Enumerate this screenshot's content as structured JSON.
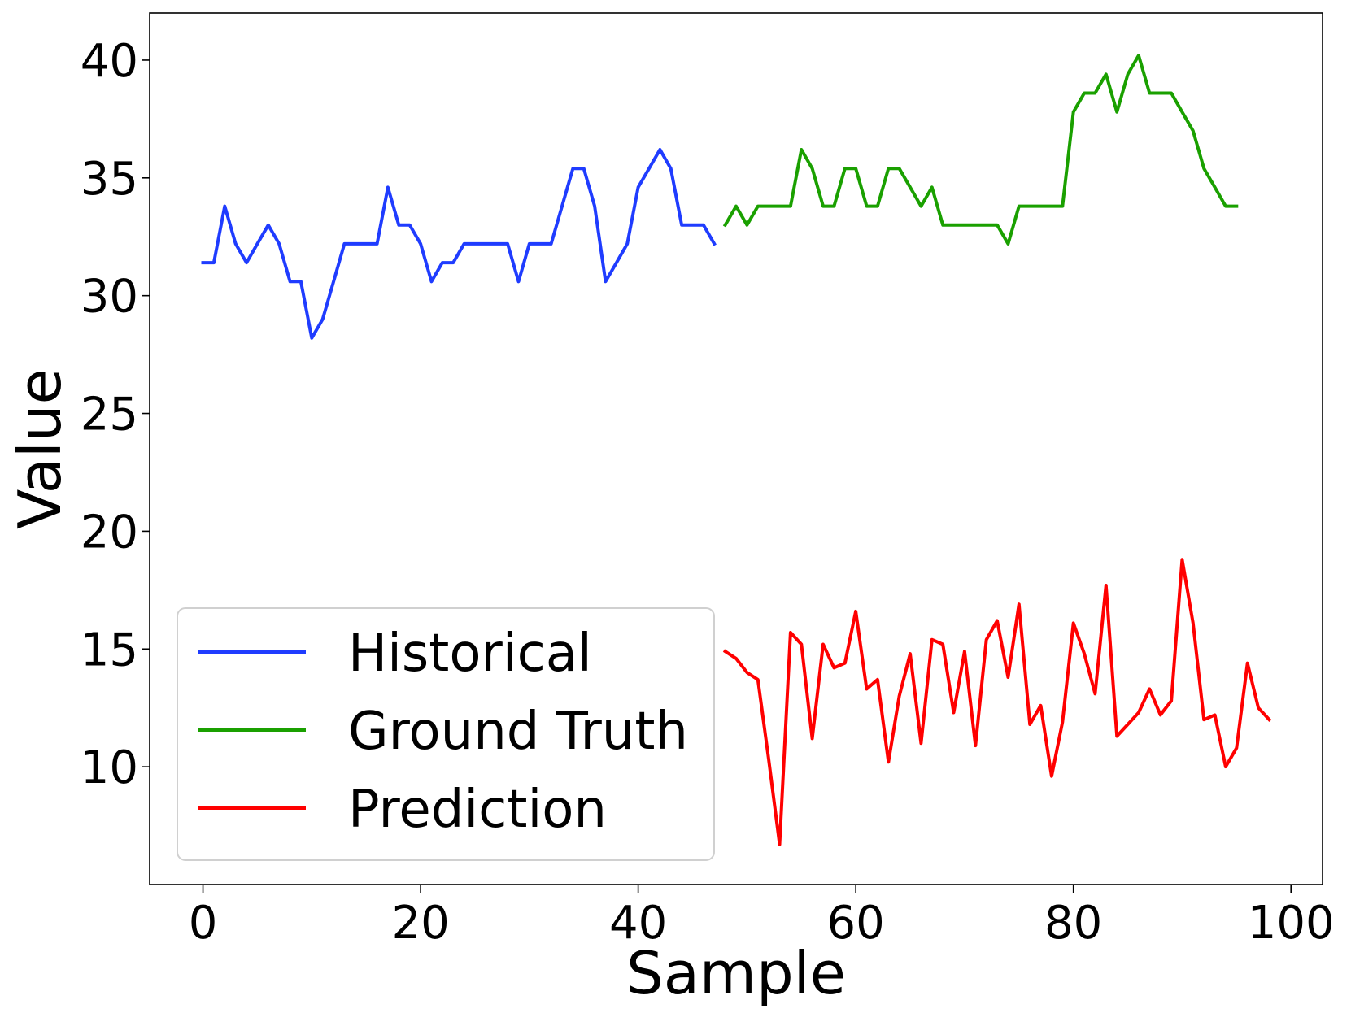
{
  "chart_data": {
    "type": "line",
    "title": "",
    "xlabel": "Sample",
    "ylabel": "Value",
    "xlim": [
      -4.9,
      102.9
    ],
    "ylim": [
      5.0,
      42.0
    ],
    "xticks": [
      0,
      20,
      40,
      60,
      80,
      100
    ],
    "yticks": [
      10,
      15,
      20,
      25,
      30,
      35,
      40
    ],
    "grid": false,
    "legend_position": "lower-left",
    "series": [
      {
        "name": "Historical",
        "color": "#1f3cff",
        "x": [
          0,
          1,
          2,
          3,
          4,
          5,
          6,
          7,
          8,
          9,
          10,
          11,
          12,
          13,
          14,
          15,
          16,
          17,
          18,
          19,
          20,
          21,
          22,
          23,
          24,
          25,
          26,
          27,
          28,
          29,
          30,
          31,
          32,
          33,
          34,
          35,
          36,
          37,
          38,
          39,
          40,
          41,
          42,
          43,
          44,
          45,
          46,
          47
        ],
        "y": [
          31.4,
          31.4,
          33.8,
          32.2,
          31.4,
          32.2,
          33.0,
          32.2,
          30.6,
          30.6,
          28.2,
          29.0,
          30.6,
          32.2,
          32.2,
          32.2,
          32.2,
          34.6,
          33.0,
          33.0,
          32.2,
          30.6,
          31.4,
          31.4,
          32.2,
          32.2,
          32.2,
          32.2,
          32.2,
          30.6,
          32.2,
          32.2,
          32.2,
          33.8,
          35.4,
          35.4,
          33.8,
          30.6,
          31.4,
          32.2,
          34.6,
          35.4,
          36.2,
          35.4,
          33.0,
          33.0,
          33.0,
          32.2
        ]
      },
      {
        "name": "Ground Truth",
        "color": "#1aa000",
        "x": [
          48,
          49,
          50,
          51,
          52,
          53,
          54,
          55,
          56,
          57,
          58,
          59,
          60,
          61,
          62,
          63,
          64,
          65,
          66,
          67,
          68,
          69,
          70,
          71,
          72,
          73,
          74,
          75,
          76,
          77,
          78,
          79,
          80,
          81,
          82,
          83,
          84,
          85,
          86,
          87,
          88,
          89,
          90,
          91,
          92,
          93,
          94,
          95
        ],
        "y": [
          33.0,
          33.8,
          33.0,
          33.8,
          33.8,
          33.8,
          33.8,
          36.2,
          35.4,
          33.8,
          33.8,
          35.4,
          35.4,
          33.8,
          33.8,
          35.4,
          35.4,
          34.6,
          33.8,
          34.6,
          33.0,
          33.0,
          33.0,
          33.0,
          33.0,
          33.0,
          32.2,
          33.8,
          33.8,
          33.8,
          33.8,
          33.8,
          37.8,
          38.6,
          38.6,
          39.4,
          37.8,
          39.4,
          40.2,
          38.6,
          38.6,
          38.6,
          37.8,
          37.0,
          35.4,
          34.6,
          33.8,
          33.8
        ]
      },
      {
        "name": "Prediction",
        "color": "#ff0000",
        "x": [
          48,
          49,
          50,
          51,
          52,
          53,
          54,
          55,
          56,
          57,
          58,
          59,
          60,
          61,
          62,
          63,
          64,
          65,
          66,
          67,
          68,
          69,
          70,
          71,
          72,
          73,
          74,
          75,
          76,
          77,
          78,
          79,
          80,
          81,
          82,
          83,
          84,
          85,
          86,
          87,
          88,
          89,
          90,
          91,
          92,
          93,
          94,
          95,
          96,
          97,
          98
        ],
        "y": [
          14.9,
          14.6,
          14.0,
          13.7,
          10.3,
          6.7,
          15.7,
          15.2,
          11.2,
          15.2,
          14.2,
          14.4,
          16.6,
          13.3,
          13.7,
          10.2,
          13.0,
          14.8,
          11.0,
          15.4,
          15.2,
          12.3,
          14.9,
          10.9,
          15.4,
          16.2,
          13.8,
          16.9,
          11.8,
          12.6,
          9.6,
          11.9,
          16.1,
          14.8,
          13.1,
          17.7,
          11.3,
          11.8,
          12.3,
          13.3,
          12.2,
          12.8,
          18.8,
          16.1,
          12.0,
          12.2,
          10.0,
          10.8,
          14.4,
          12.5,
          12.0
        ]
      }
    ]
  }
}
